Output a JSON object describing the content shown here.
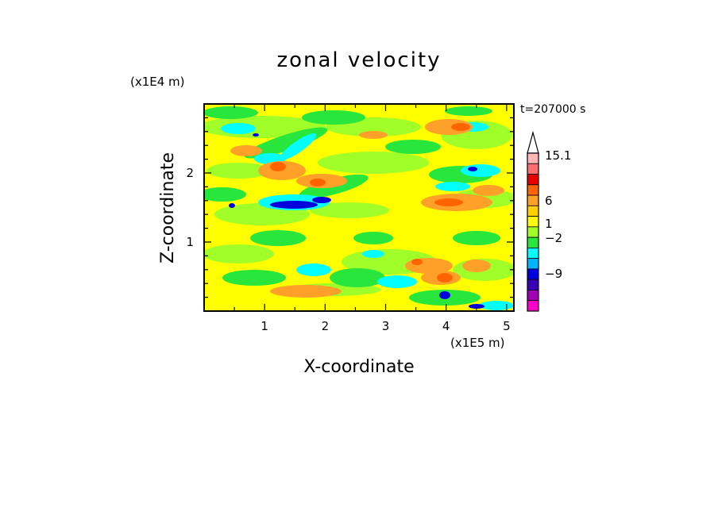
{
  "chart_data": {
    "type": "heatmap",
    "title": "zonal velocity",
    "xlabel": "X-coordinate",
    "ylabel": "Z-coordinate",
    "x_scale_label": "(x1E5 m)",
    "y_scale_label": "(x1E4 m)",
    "time_label": "t=207000 s",
    "xlim": [
      0,
      5.12
    ],
    "ylim": [
      0,
      3.0
    ],
    "x_ticks": [
      "1",
      "2",
      "3",
      "4",
      "5"
    ],
    "y_ticks": [
      "1",
      "2"
    ],
    "colorbar": {
      "labels": [
        "15.1",
        "6",
        "1",
        "−2",
        "−9"
      ],
      "colors_top_to_bottom": [
        "#ffb6b6",
        "#ff6e6e",
        "#e80000",
        "#ff6400",
        "#ffa028",
        "#ffd000",
        "#ffff00",
        "#a0ff28",
        "#28e63c",
        "#00ffff",
        "#00b4ff",
        "#0000dc",
        "#3c00b4",
        "#a000b4",
        "#ff00c8"
      ]
    },
    "field_palette": {
      "strong_positive": "#ff6400",
      "positive": "#ffa028",
      "weak_positive": "#ffff00",
      "near_zero": "#a0ff28",
      "weak_negative": "#28e63c",
      "negative": "#00ffff",
      "strong_negative": "#0000dc"
    }
  }
}
